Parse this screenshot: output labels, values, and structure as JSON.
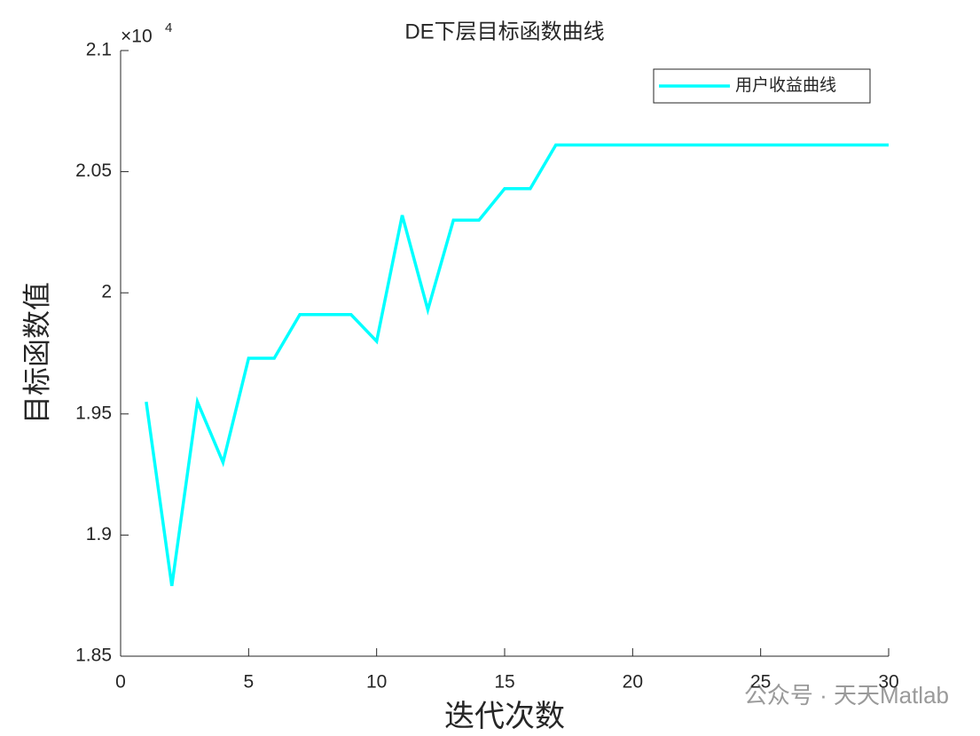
{
  "chart_data": {
    "type": "line",
    "title": "DE下层目标函数曲线",
    "x_label": "迭代次数",
    "y_label": "目标函数值",
    "y_exponent": {
      "base": "×10",
      "power": "4"
    },
    "x": [
      1,
      2,
      3,
      4,
      5,
      6,
      7,
      8,
      9,
      10,
      11,
      12,
      13,
      14,
      15,
      16,
      17,
      18,
      19,
      20,
      21,
      22,
      23,
      24,
      25,
      26,
      27,
      28,
      29,
      30
    ],
    "series": [
      {
        "name": "用户收益曲线",
        "color": "#00ffff",
        "values": [
          1.955,
          1.879,
          1.955,
          1.93,
          1.973,
          1.973,
          1.991,
          1.991,
          1.991,
          1.98,
          2.032,
          1.993,
          2.03,
          2.03,
          2.043,
          2.043,
          2.061,
          2.061,
          2.061,
          2.061,
          2.061,
          2.061,
          2.061,
          2.061,
          2.061,
          2.061,
          2.061,
          2.061,
          2.061,
          2.061
        ]
      }
    ],
    "xlim": [
      0,
      30
    ],
    "xticks": [
      0,
      5,
      10,
      15,
      20,
      25,
      30
    ],
    "ylim": [
      1.85,
      2.1
    ],
    "yticks": [
      1.85,
      1.9,
      1.95,
      2,
      2.05,
      2.1
    ],
    "legend": "northeast",
    "watermark": "公众号 · 天天Matlab"
  }
}
